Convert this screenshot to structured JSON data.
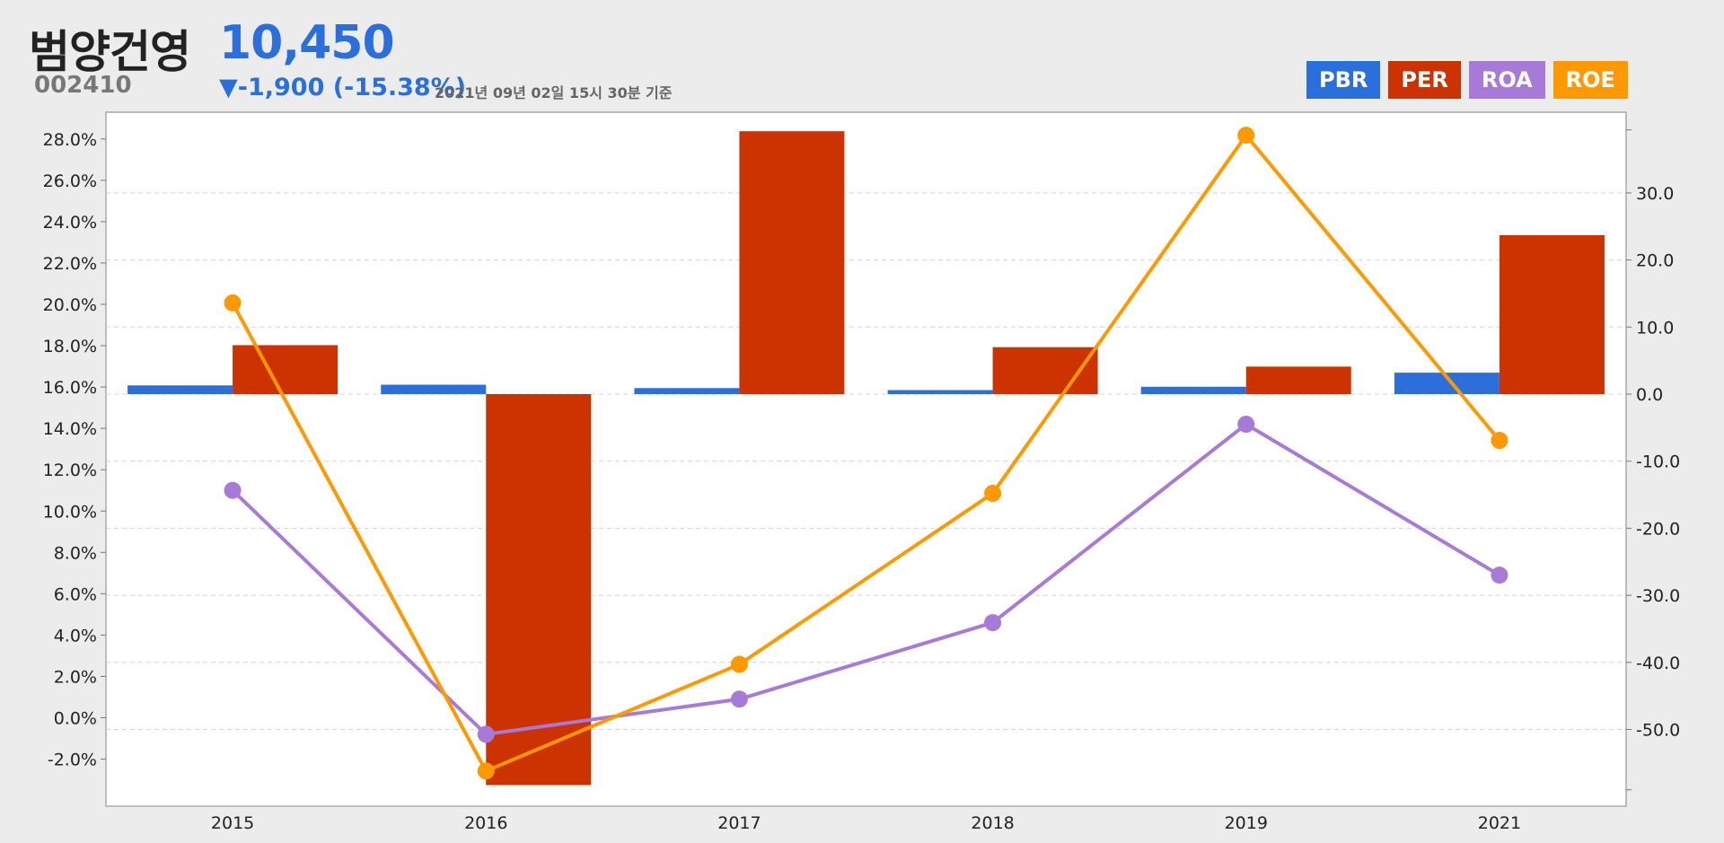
{
  "header": {
    "name": "범양건영",
    "price": "10,450",
    "code": "002410",
    "change": "▼-1,900 (-15.38%)",
    "timestamp": "2021년 09년 02일 15시 30분 기준"
  },
  "colors": {
    "PBR": "#2a6fdb",
    "PER": "#cc3300",
    "ROA": "#a87ad8",
    "ROE": "#ff9900",
    "up_down": "#2a6fdb"
  },
  "legend": [
    {
      "label": "PBR",
      "color": "#2a6fdb"
    },
    {
      "label": "PER",
      "color": "#cc3300"
    },
    {
      "label": "ROA",
      "color": "#a87ad8"
    },
    {
      "label": "ROE",
      "color": "#ff9900"
    }
  ],
  "chart_data": {
    "type": "bar",
    "categories": [
      "2015",
      "2016",
      "2017",
      "2018",
      "2019",
      "2021"
    ],
    "left_axis": {
      "range": [
        -4.0,
        29.0
      ],
      "ticks": [
        -2,
        0,
        2,
        4,
        6,
        8,
        10,
        12,
        14,
        16,
        18,
        20,
        22,
        24,
        26,
        28
      ],
      "tick_labels": [
        "-2.0%",
        "0.0%",
        "2.0%",
        "4.0%",
        "6.0%",
        "8.0%",
        "10.0%",
        "12.0%",
        "14.0%",
        "16.0%",
        "18.0%",
        "20.0%",
        "22.0%",
        "24.0%",
        "26.0%",
        "28.0%"
      ]
    },
    "right_axis": {
      "range": [
        -60.7,
        40.6
      ],
      "ticks": [
        -50,
        -40,
        -30,
        -20,
        -10,
        0,
        10,
        20,
        30
      ],
      "tick_labels": [
        "-50.0",
        "-40.0",
        "-30.0",
        "-20.0",
        "-10.0",
        "0.0",
        "10.0",
        "20.0",
        "30.0"
      ]
    },
    "series": [
      {
        "name": "PBR",
        "kind": "bar",
        "axis": "right",
        "values": [
          1.3,
          1.4,
          0.9,
          0.6,
          1.1,
          3.2
        ]
      },
      {
        "name": "PER",
        "kind": "bar",
        "axis": "right",
        "values": [
          7.3,
          -58.3,
          39.2,
          7.0,
          4.1,
          23.7
        ]
      },
      {
        "name": "ROA",
        "kind": "line",
        "axis": "left",
        "values": [
          11.0,
          -0.8,
          0.9,
          4.6,
          14.2,
          6.9
        ]
      },
      {
        "name": "ROE",
        "kind": "line",
        "axis": "left",
        "values": [
          20.0,
          -2.6,
          2.6,
          10.8,
          28.2,
          -7.0
        ]
      }
    ],
    "roe_right_axis_values": [
      13.6,
      -56.2,
      -40.3,
      -14.8,
      38.6,
      -6.9
    ],
    "grid": true
  }
}
